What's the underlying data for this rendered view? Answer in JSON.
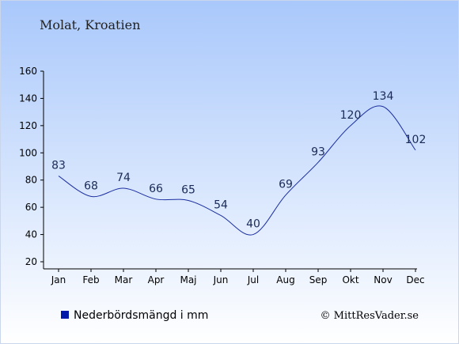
{
  "chart_data": {
    "type": "line",
    "title": "Molat, Kroatien",
    "categories": [
      "Jan",
      "Feb",
      "Mar",
      "Apr",
      "Maj",
      "Jun",
      "Jul",
      "Aug",
      "Sep",
      "Okt",
      "Nov",
      "Dec"
    ],
    "series": [
      {
        "name": "Nederbördsmängd i mm",
        "values": [
          83,
          68,
          74,
          66,
          65,
          54,
          40,
          69,
          93,
          120,
          134,
          102
        ],
        "color": "#1c2fa0"
      }
    ],
    "ylim": [
      20,
      160
    ],
    "yticks": [
      20,
      40,
      60,
      80,
      100,
      120,
      140,
      160
    ],
    "legend_position": "bottom-left",
    "grid": false
  },
  "colors": {
    "background_top": "#a9c8fb",
    "background_bottom": "#ffffff",
    "line": "#1c2fa0",
    "legend_marker": "#0019a8"
  },
  "credit": "© MittResVader.se"
}
